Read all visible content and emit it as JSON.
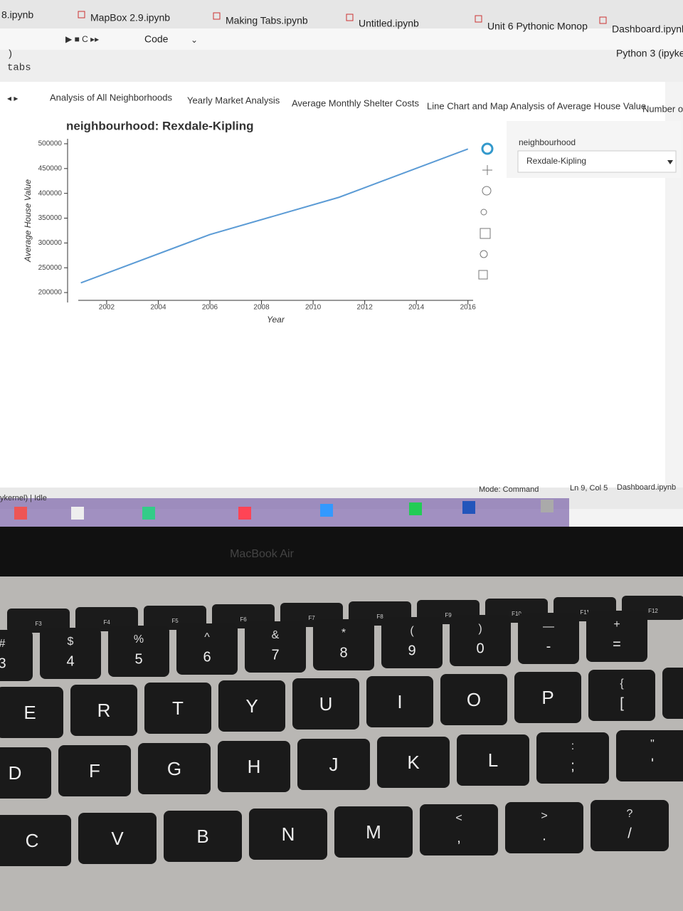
{
  "browser_tabs": [
    "8.ipynb",
    "MapBox 2.9.ipynb",
    "Making Tabs.ipynb",
    "Untitled.ipynb",
    "Unit 6 Pythonic Monop",
    "Dashboard.ipynb"
  ],
  "toolbar": {
    "cell_type": "Code",
    "kernel": "Python 3 (ipykern"
  },
  "cell_lines": [
    ")",
    "tabs"
  ],
  "output_tabs": [
    "Analysis of All Neighborhoods",
    "Yearly Market Analysis",
    "Average Monthly Shelter Costs",
    "Line Chart and Map Analysis of Average House Value",
    "Number of"
  ],
  "chart_data": {
    "type": "line",
    "title": "neighbourhood: Rexdale-Kipling",
    "x_label": "Year",
    "y_label": "Average House Value",
    "x": [
      2001,
      2006,
      2011,
      2016
    ],
    "values": [
      219500,
      317000,
      392000,
      489500
    ],
    "color": "#5b9bd5",
    "xlim": [
      2000.9,
      2016.2
    ],
    "ylim": [
      180000,
      510000
    ],
    "xticks": [
      2002,
      2004,
      2006,
      2008,
      2010,
      2012,
      2014,
      2016
    ],
    "yticks": [
      200000,
      250000,
      300000,
      350000,
      400000,
      450000,
      500000
    ]
  },
  "widget": {
    "label": "neighbourhood",
    "selected": "Rexdale-Kipling"
  },
  "status_bar": {
    "kernel": "ykernel) | Idle",
    "mode": "Mode: Command",
    "position": "Ln 9, Col 5",
    "file": "Dashboard.ipynb"
  },
  "laptop_label": "MacBook Air",
  "keyboard": {
    "function_keys": [
      "F3",
      "F4",
      "F5",
      "F6",
      "F7",
      "F8",
      "F9",
      "F10",
      "F11",
      "F12"
    ],
    "rows": [
      [
        [
          "#",
          "3"
        ],
        [
          "$",
          "4"
        ],
        [
          "%",
          "5"
        ],
        [
          "^",
          "6"
        ],
        [
          "&",
          "7"
        ],
        [
          "*",
          "8"
        ],
        [
          "(",
          "9"
        ],
        [
          ")",
          "0"
        ],
        [
          "—",
          "-"
        ],
        [
          "+",
          "="
        ]
      ],
      [
        [
          "E"
        ],
        [
          "R"
        ],
        [
          "T"
        ],
        [
          "Y"
        ],
        [
          "U"
        ],
        [
          "I"
        ],
        [
          "O"
        ],
        [
          "P"
        ],
        [
          "{",
          "["
        ],
        [
          "}",
          "]"
        ]
      ],
      [
        [
          "D"
        ],
        [
          "F"
        ],
        [
          "G"
        ],
        [
          "H"
        ],
        [
          "J"
        ],
        [
          "K"
        ],
        [
          "L"
        ],
        [
          ":",
          ";"
        ],
        [
          "\"",
          "'"
        ]
      ],
      [
        [
          "C"
        ],
        [
          "V"
        ],
        [
          "B"
        ],
        [
          "N"
        ],
        [
          "M"
        ],
        [
          "<",
          ","
        ],
        [
          ">",
          "."
        ],
        [
          "?",
          "/"
        ]
      ]
    ]
  }
}
